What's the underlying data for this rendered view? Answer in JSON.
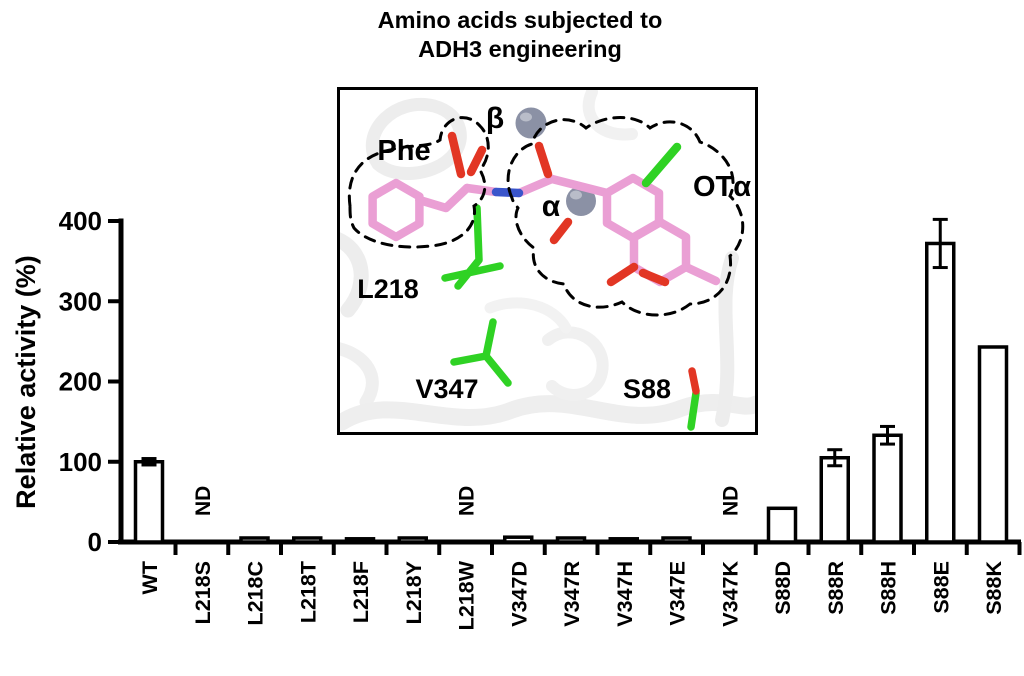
{
  "chart_data": {
    "type": "bar",
    "title": "Amino acids subjected to ADH3 engineering",
    "title_lines": [
      "Amino acids subjected to",
      "ADH3 engineering"
    ],
    "xlabel": "",
    "ylabel": "Relative activity (%)",
    "ylim": [
      0,
      400
    ],
    "yticks": [
      0,
      100,
      200,
      300,
      400
    ],
    "grid": false,
    "legend": "none",
    "nd_label": "ND",
    "axis_color": "#000000",
    "bar_fill": "#ffffff",
    "bar_stroke": "#000000",
    "categories": [
      "WT",
      "L218S",
      "L218C",
      "L218T",
      "L218F",
      "L218Y",
      "L218W",
      "V347D",
      "V347R",
      "V347H",
      "V347E",
      "V347K",
      "S88D",
      "S88R",
      "S88H",
      "S88E",
      "S88K"
    ],
    "values": [
      100,
      null,
      5,
      5,
      4,
      5,
      null,
      6,
      5,
      4,
      5,
      null,
      42,
      105,
      133,
      372,
      243
    ],
    "errors": [
      4,
      null,
      null,
      null,
      null,
      null,
      null,
      null,
      null,
      null,
      null,
      null,
      null,
      10,
      11,
      30,
      null
    ]
  },
  "inset": {
    "labels": {
      "phe": "Phe",
      "beta": "β",
      "alpha": "α",
      "ota": "OTα",
      "l218": "L218",
      "v347": "V347",
      "s88": "S88"
    },
    "colors": {
      "ligand": "#ea9fd4",
      "residues": "#2fd224",
      "oxygen": "#e23624",
      "nitrogen": "#3a55cb",
      "ions": "#8b91a5",
      "cartoon": "#ededed",
      "outline": "#000000"
    }
  }
}
